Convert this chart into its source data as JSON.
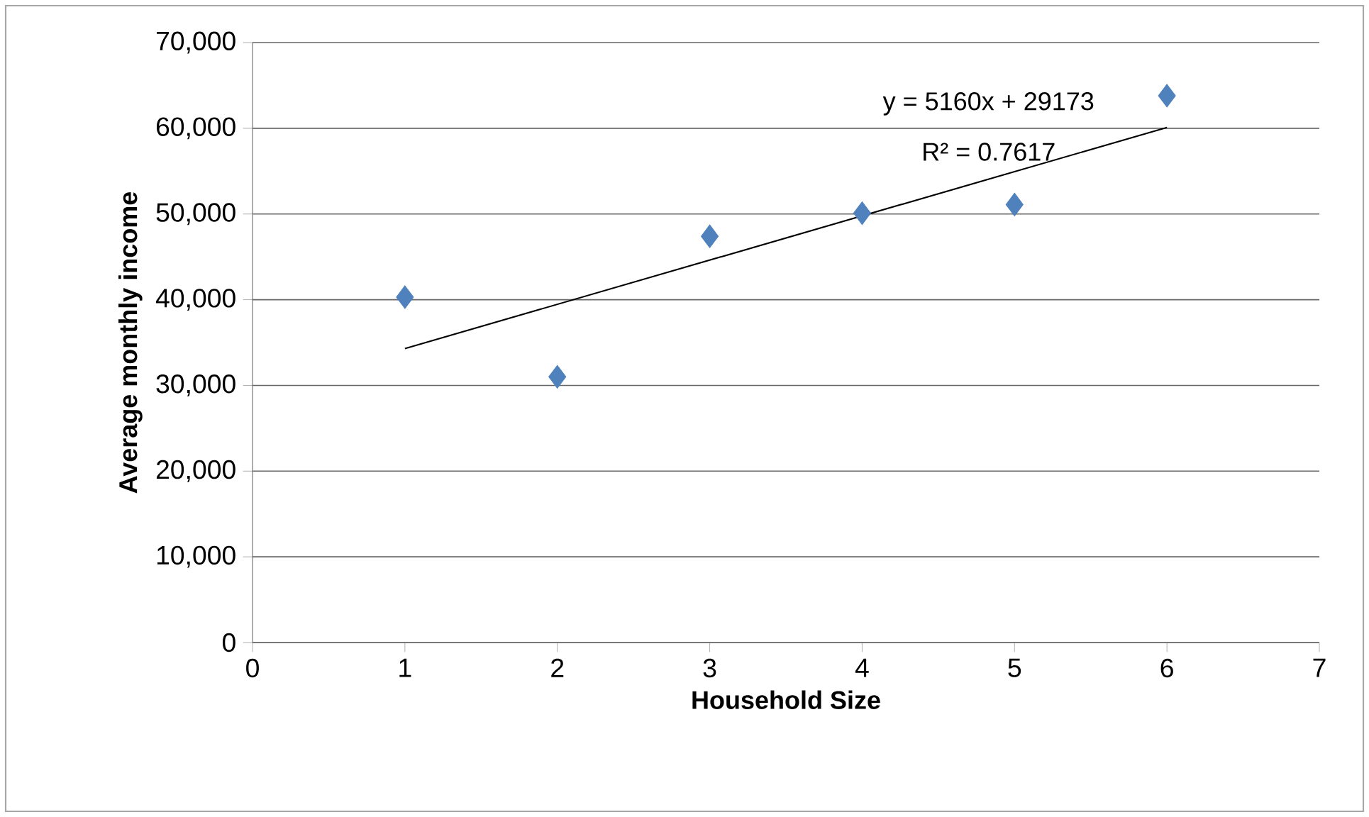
{
  "chart_data": {
    "type": "scatter",
    "xlabel": "Household Size",
    "ylabel": "Average monthly income",
    "series": [
      {
        "color": "#4f81bd",
        "marker": "diamond",
        "x": [
          1,
          2,
          3,
          4,
          5,
          6
        ],
        "values": [
          40300,
          31000,
          47400,
          50100,
          51100,
          63800
        ]
      },
      {
        "type": "line",
        "color": "#000000",
        "marker": "none",
        "x": [
          1,
          6
        ],
        "values": [
          34300,
          60100
        ]
      }
    ],
    "xlim": [
      0,
      7
    ],
    "xticks": [
      0,
      1,
      2,
      3,
      4,
      5,
      6,
      7
    ],
    "ylim": [
      0,
      70000
    ],
    "yticks": [
      {
        "value": 0,
        "label": "0"
      },
      {
        "value": 10000,
        "label": "10,000"
      },
      {
        "value": 20000,
        "label": "20,000"
      },
      {
        "value": 30000,
        "label": "30,000"
      },
      {
        "value": 40000,
        "label": "40,000"
      },
      {
        "value": 50000,
        "label": "50,000"
      },
      {
        "value": 60000,
        "label": "60,000"
      },
      {
        "value": 70000,
        "label": "70,000"
      }
    ],
    "grid": "y",
    "annotations": [
      "y = 5160x + 29173",
      "R² = 0.7617"
    ]
  }
}
